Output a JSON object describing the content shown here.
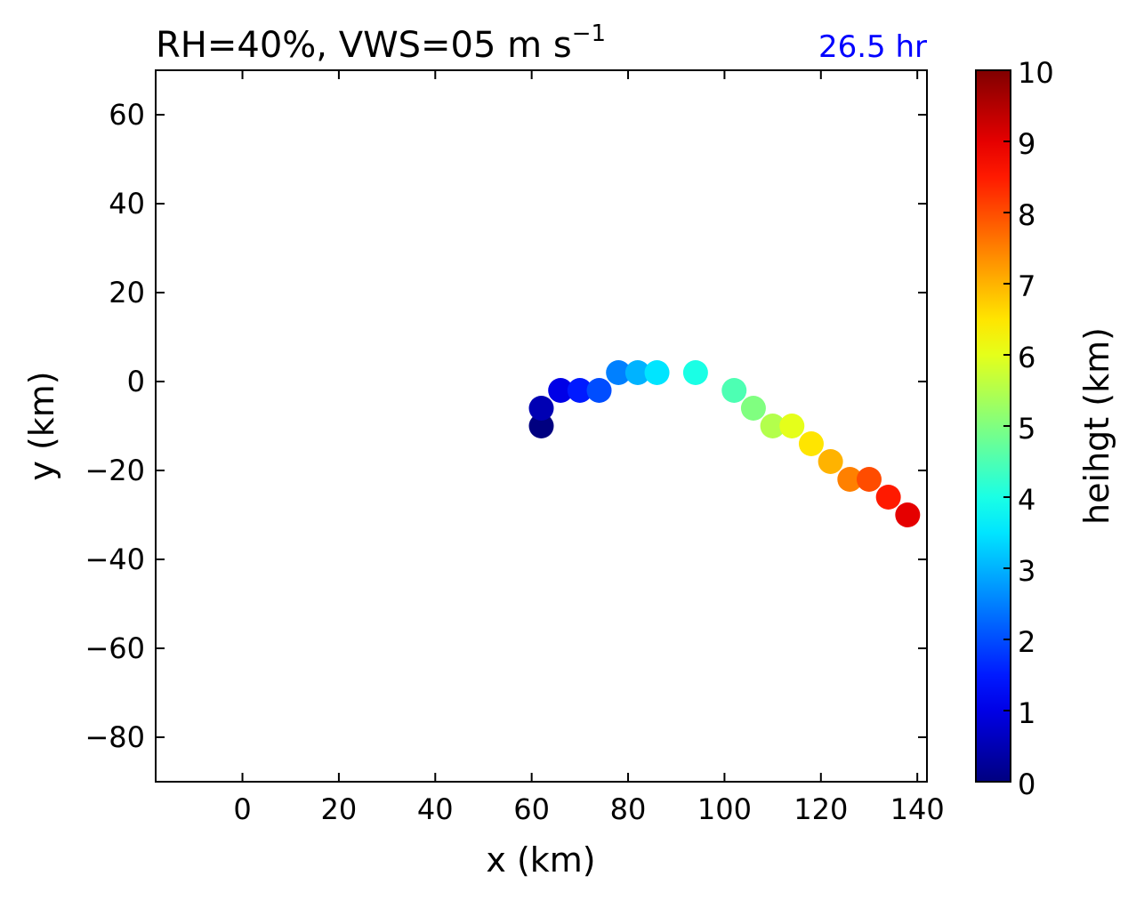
{
  "chart_data": {
    "type": "scatter",
    "title": {
      "main": "RH=40%, VWS=05 m s",
      "superscript": "−1"
    },
    "time_label": "26.5 hr",
    "time_label_color": "#0000ff",
    "xlabel": "x (km)",
    "ylabel": "y (km)",
    "xlim": [
      -18,
      142
    ],
    "ylim": [
      -90,
      70
    ],
    "xticks": [
      0,
      20,
      40,
      60,
      80,
      100,
      120,
      140
    ],
    "yticks": [
      60,
      40,
      20,
      0,
      -20,
      -40,
      -60,
      -80
    ],
    "xtick_labels": [
      "0",
      "20",
      "40",
      "60",
      "80",
      "100",
      "120",
      "140"
    ],
    "ytick_labels": [
      "60",
      "40",
      "20",
      "0",
      "−20",
      "−40",
      "−60",
      "−80"
    ],
    "colorbar": {
      "label": "heihgt (km)",
      "range": [
        0,
        10
      ],
      "colormap": "jet",
      "ticks": [
        0,
        1,
        2,
        3,
        4,
        5,
        6,
        7,
        8,
        9,
        10
      ],
      "tick_labels": [
        "0",
        "1",
        "2",
        "3",
        "4",
        "5",
        "6",
        "7",
        "8",
        "9",
        "10"
      ]
    },
    "points": [
      {
        "x": 62,
        "y": -10,
        "height": 0.0
      },
      {
        "x": 62,
        "y": -6,
        "height": 0.5
      },
      {
        "x": 66,
        "y": -2,
        "height": 1.0
      },
      {
        "x": 70,
        "y": -2,
        "height": 1.5
      },
      {
        "x": 74,
        "y": -2,
        "height": 2.0
      },
      {
        "x": 78,
        "y": 2,
        "height": 2.5
      },
      {
        "x": 82,
        "y": 2,
        "height": 3.0
      },
      {
        "x": 86,
        "y": 2,
        "height": 3.5
      },
      {
        "x": 94,
        "y": 2,
        "height": 4.0
      },
      {
        "x": 102,
        "y": -2,
        "height": 4.5
      },
      {
        "x": 106,
        "y": -6,
        "height": 5.0
      },
      {
        "x": 110,
        "y": -10,
        "height": 5.5
      },
      {
        "x": 114,
        "y": -10,
        "height": 6.0
      },
      {
        "x": 118,
        "y": -14,
        "height": 6.5
      },
      {
        "x": 122,
        "y": -18,
        "height": 7.0
      },
      {
        "x": 126,
        "y": -22,
        "height": 7.5
      },
      {
        "x": 130,
        "y": -22,
        "height": 8.0
      },
      {
        "x": 134,
        "y": -26,
        "height": 8.5
      },
      {
        "x": 138,
        "y": -30,
        "height": 9.0
      }
    ]
  }
}
